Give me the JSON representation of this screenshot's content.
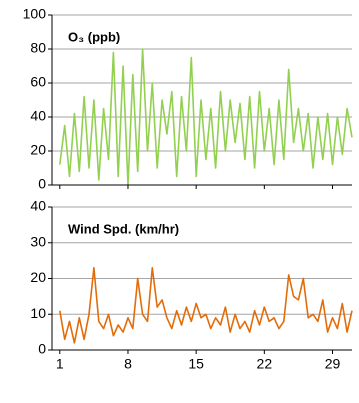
{
  "chart_data": [
    {
      "type": "line",
      "title": "O₃ (ppb)",
      "color": "#92d050",
      "x": [
        1,
        1.5,
        2,
        2.5,
        3,
        3.5,
        4,
        4.5,
        5,
        5.5,
        6,
        6.5,
        7,
        7.5,
        8,
        8.5,
        9,
        9.5,
        10,
        10.5,
        11,
        11.5,
        12,
        12.5,
        13,
        13.5,
        14,
        14.5,
        15,
        15.5,
        16,
        16.5,
        17,
        17.5,
        18,
        18.5,
        19,
        19.5,
        20,
        20.5,
        21,
        21.5,
        22,
        22.5,
        23,
        23.5,
        24,
        24.5,
        25,
        25.5,
        26,
        26.5,
        27,
        27.5,
        28,
        28.5,
        29,
        29.5,
        30,
        30.5,
        31
      ],
      "values": [
        12,
        35,
        5,
        42,
        8,
        52,
        10,
        50,
        3,
        45,
        15,
        78,
        5,
        70,
        0,
        65,
        8,
        80,
        20,
        60,
        10,
        50,
        30,
        55,
        5,
        52,
        20,
        75,
        5,
        50,
        15,
        45,
        10,
        55,
        20,
        50,
        25,
        48,
        15,
        52,
        10,
        55,
        20,
        45,
        12,
        50,
        15,
        68,
        25,
        45,
        20,
        42,
        10,
        40,
        15,
        42,
        12,
        40,
        18,
        45,
        28
      ],
      "xlim": [
        0.2,
        31
      ],
      "xticks": [
        1,
        8,
        15,
        22,
        29
      ],
      "ylim": [
        0,
        100
      ],
      "yticks": [
        0,
        20,
        40,
        60,
        80,
        100
      ],
      "grid": true
    },
    {
      "type": "line",
      "title": "Wind Spd. (km/hr)",
      "color": "#e36c09",
      "x": [
        1,
        1.5,
        2,
        2.5,
        3,
        3.5,
        4,
        4.5,
        5,
        5.5,
        6,
        6.5,
        7,
        7.5,
        8,
        8.5,
        9,
        9.5,
        10,
        10.5,
        11,
        11.5,
        12,
        12.5,
        13,
        13.5,
        14,
        14.5,
        15,
        15.5,
        16,
        16.5,
        17,
        17.5,
        18,
        18.5,
        19,
        19.5,
        20,
        20.5,
        21,
        21.5,
        22,
        22.5,
        23,
        23.5,
        24,
        24.5,
        25,
        25.5,
        26,
        26.5,
        27,
        27.5,
        28,
        28.5,
        29,
        29.5,
        30,
        30.5,
        31
      ],
      "values": [
        11,
        3,
        8,
        2,
        9,
        3,
        10,
        23,
        8,
        6,
        10,
        4,
        7,
        5,
        9,
        6,
        20,
        10,
        8,
        23,
        12,
        14,
        9,
        6,
        11,
        7,
        12,
        8,
        13,
        9,
        10,
        6,
        9,
        7,
        12,
        5,
        10,
        6,
        8,
        5,
        11,
        7,
        12,
        8,
        9,
        6,
        8,
        21,
        15,
        14,
        20,
        9,
        10,
        8,
        14,
        5,
        9,
        6,
        13,
        5,
        11
      ],
      "xlim": [
        0.2,
        31
      ],
      "xticks": [
        1,
        8,
        15,
        22,
        29
      ],
      "ylim": [
        0,
        40
      ],
      "yticks": [
        0,
        10,
        20,
        30,
        40
      ],
      "grid": true
    }
  ]
}
